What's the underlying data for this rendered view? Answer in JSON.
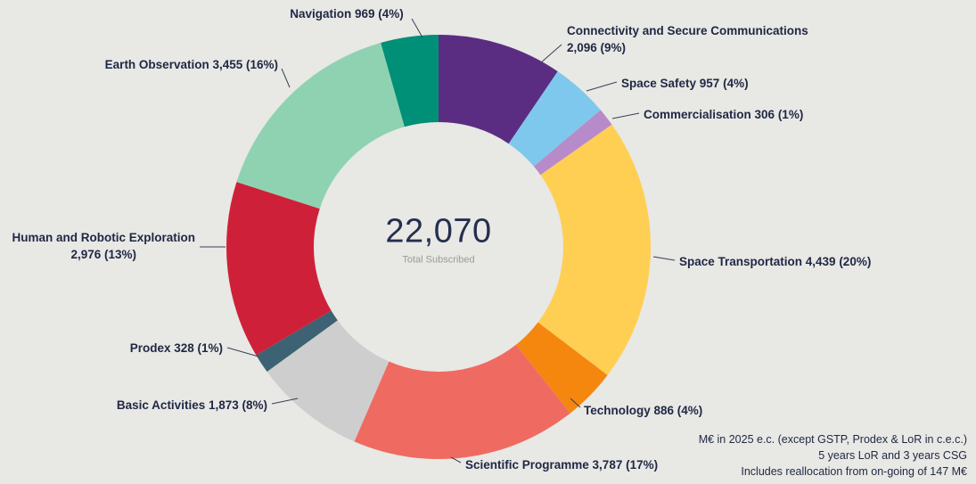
{
  "chart_data": {
    "type": "donut",
    "title": "",
    "center": {
      "total": "22,070",
      "subtitle": "Total Subscribed"
    },
    "total_value": 22070,
    "text_color": "#1f2744",
    "background_color": "#e8e8e4",
    "segments": [
      {
        "label": "Connectivity and Secure Communications",
        "value": 2096,
        "value_display": "2,096",
        "percent": "9%",
        "color": "#5b2d82"
      },
      {
        "label": "Space Safety",
        "value": 957,
        "value_display": "957",
        "percent": "4%",
        "color": "#7ec8ee"
      },
      {
        "label": "Commercialisation",
        "value": 306,
        "value_display": "306",
        "percent": "1%",
        "color": "#b78bc9"
      },
      {
        "label": "Space Transportation",
        "value": 4439,
        "value_display": "4,439",
        "percent": "20%",
        "color": "#ffcf54"
      },
      {
        "label": "Technology",
        "value": 886,
        "value_display": "886",
        "percent": "4%",
        "color": "#f5870f"
      },
      {
        "label": "Scientific Programme",
        "value": 3787,
        "value_display": "3,787",
        "percent": "17%",
        "color": "#ef6b61"
      },
      {
        "label": "Basic Activities",
        "value": 1873,
        "value_display": "1,873",
        "percent": "8%",
        "color": "#cecece"
      },
      {
        "label": "Prodex",
        "value": 328,
        "value_display": "328",
        "percent": "1%",
        "color": "#3c6273"
      },
      {
        "label": "Human and Robotic Exploration",
        "value": 2976,
        "value_display": "2,976",
        "percent": "13%",
        "color": "#ce2139"
      },
      {
        "label": "Earth Observation",
        "value": 3455,
        "value_display": "3,455",
        "percent": "16%",
        "color": "#8fd2b2"
      },
      {
        "label": "Navigation",
        "value": 969,
        "value_display": "969",
        "percent": "4%",
        "color": "#008f77"
      }
    ]
  },
  "footnotes": [
    "M€ in 2025 e.c. (except GSTP, Prodex & LoR in c.e.c.)",
    "5 years LoR and 3 years CSG",
    "Includes reallocation from on-going of 147 M€"
  ]
}
